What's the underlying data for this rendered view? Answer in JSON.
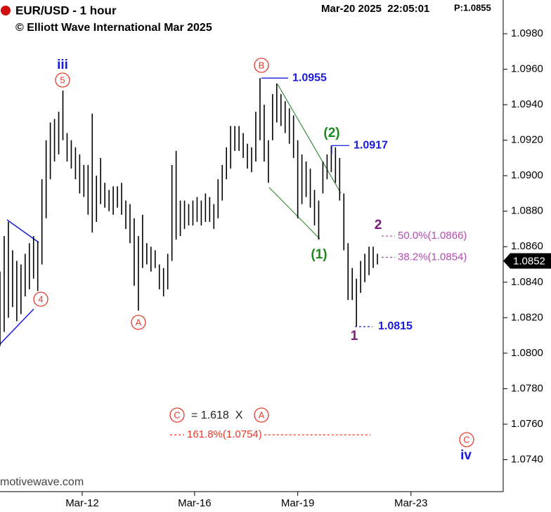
{
  "chart_data": {
    "type": "ohlc",
    "title": "EUR/USD - 1 hour",
    "subtitle": "© Elliott Wave International Mar 2025",
    "timestamp": "Mar-20 2025  22:05:01",
    "price_header": "P:1.0855",
    "source": "motivewave.com",
    "bars": {
      "color": "#000000",
      "high": [
        1.0846,
        1.0866,
        1.0874,
        1.0858,
        1.0852,
        1.085,
        1.0856,
        1.0862,
        1.0866,
        1.0863,
        1.0898,
        1.092,
        1.093,
        1.0932,
        1.0936,
        1.0948,
        1.0924,
        1.092,
        1.0916,
        1.0912,
        1.0906,
        1.0906,
        1.0935,
        1.09,
        1.091,
        1.0896,
        1.0892,
        1.0894,
        1.0894,
        1.0896,
        1.0886,
        1.0884,
        1.0876,
        1.0866,
        1.0878,
        1.0862,
        1.086,
        1.0858,
        1.085,
        1.0848,
        1.0856,
        1.0906,
        1.0914,
        1.0886,
        1.0886,
        1.0884,
        1.0886,
        1.0888,
        1.0886,
        1.089,
        1.0888,
        1.0884,
        1.0898,
        1.0906,
        1.0916,
        1.0928,
        1.0928,
        1.0928,
        1.0924,
        1.0918,
        1.0916,
        1.0936,
        1.0955,
        1.094,
        1.092,
        1.0946,
        1.0952,
        1.0946,
        1.0942,
        1.0938,
        1.0934,
        1.092,
        1.0912,
        1.0908,
        1.0904,
        1.0892,
        1.0886,
        1.0908,
        1.0912,
        1.0917,
        1.0916,
        1.091,
        1.089,
        1.0862,
        1.0848,
        1.0842,
        1.0852,
        1.0856,
        1.086,
        1.086,
        1.0856
      ],
      "low": [
        1.0804,
        1.0812,
        1.082,
        1.0826,
        1.0818,
        1.0822,
        1.0832,
        1.0836,
        1.0842,
        1.0835,
        1.085,
        1.0876,
        1.0898,
        1.0908,
        1.0912,
        1.092,
        1.0908,
        1.0904,
        1.0898,
        1.089,
        1.0888,
        1.0878,
        1.0868,
        1.0874,
        1.0884,
        1.0882,
        1.088,
        1.0878,
        1.0882,
        1.0878,
        1.087,
        1.0862,
        1.0838,
        1.0824,
        1.0848,
        1.085,
        1.0846,
        1.0848,
        1.0836,
        1.0832,
        1.0836,
        1.0852,
        1.0864,
        1.0866,
        1.087,
        1.0872,
        1.0872,
        1.0874,
        1.0872,
        1.0874,
        1.0874,
        1.087,
        1.0876,
        1.0886,
        1.0898,
        1.0904,
        1.0914,
        1.0914,
        1.091,
        1.0904,
        1.0902,
        1.0908,
        1.092,
        1.0908,
        1.0896,
        1.092,
        1.093,
        1.0928,
        1.0924,
        1.0918,
        1.091,
        1.0876,
        1.0884,
        1.0888,
        1.0882,
        1.0872,
        1.0864,
        1.089,
        1.0898,
        1.0902,
        1.0896,
        1.0886,
        1.0858,
        1.083,
        1.083,
        1.0815,
        1.0834,
        1.084,
        1.0844,
        1.0848,
        1.085
      ]
    },
    "xlim": [
      0,
      120
    ],
    "xticks": [
      {
        "value": 19.6,
        "label": "Mar-12"
      },
      {
        "value": 46.4,
        "label": "Mar-16"
      },
      {
        "value": 71,
        "label": "Mar-19"
      },
      {
        "value": 98,
        "label": "Mar-23"
      }
    ],
    "ylim": [
      1.0722,
      1.0999
    ],
    "yticks": [
      {
        "value": 1.074,
        "label": "1.0740"
      },
      {
        "value": 1.076,
        "label": "1.0760"
      },
      {
        "value": 1.078,
        "label": "1.0780"
      },
      {
        "value": 1.08,
        "label": "1.0800"
      },
      {
        "value": 1.082,
        "label": "1.0820"
      },
      {
        "value": 1.084,
        "label": "1.0840"
      },
      {
        "value": 1.086,
        "label": "1.0860"
      },
      {
        "value": 1.088,
        "label": "1.0880"
      },
      {
        "value": 1.09,
        "label": "1.0900"
      },
      {
        "value": 1.092,
        "label": "1.0920"
      },
      {
        "value": 1.094,
        "label": "1.0940"
      },
      {
        "value": 1.096,
        "label": "1.0960"
      },
      {
        "value": 1.098,
        "label": "1.0980"
      }
    ],
    "last_price": {
      "value": 1.0852,
      "label": "1.0852"
    },
    "levels": [
      {
        "value": 1.0955,
        "label": "1.0955",
        "color": "#1a1adb"
      },
      {
        "value": 1.0917,
        "label": "1.0917",
        "color": "#1a1adb"
      },
      {
        "value": 1.0815,
        "label": "1.0815",
        "color": "#1a1adb"
      },
      {
        "value": 1.0866,
        "label": "50.0%(1.0866)",
        "color": "#b54bb5"
      },
      {
        "value": 1.0854,
        "label": "38.2%(1.0854)",
        "color": "#b54bb5"
      },
      {
        "value": 1.0754,
        "label": "161.8%(1.0754)",
        "color": "#e8392b"
      }
    ],
    "wave_labels": [
      {
        "label": "iii",
        "circled": false,
        "color": "#1a1adb"
      },
      {
        "label": "5",
        "circled": true,
        "color": "#e8392b"
      },
      {
        "label": "4",
        "circled": true,
        "color": "#e8392b"
      },
      {
        "label": "A",
        "circled": true,
        "color": "#e8392b"
      },
      {
        "label": "B",
        "circled": true,
        "color": "#e8392b"
      },
      {
        "label": "(2)",
        "circled": false,
        "color": "#1e8a1e"
      },
      {
        "label": "(1)",
        "circled": false,
        "color": "#1e8a1e"
      },
      {
        "label": "2",
        "circled": false,
        "color": "#7a1a7a"
      },
      {
        "label": "1",
        "circled": false,
        "color": "#7a1a7a"
      },
      {
        "label": "C",
        "circled": true,
        "color": "#e8392b"
      },
      {
        "label": "iv",
        "circled": false,
        "color": "#1a1adb"
      },
      {
        "label": "C",
        "circled": true,
        "color": "#e8392b"
      },
      {
        "label": "A",
        "circled": true,
        "color": "#e8392b"
      }
    ],
    "equation": "= 1.618  X"
  }
}
